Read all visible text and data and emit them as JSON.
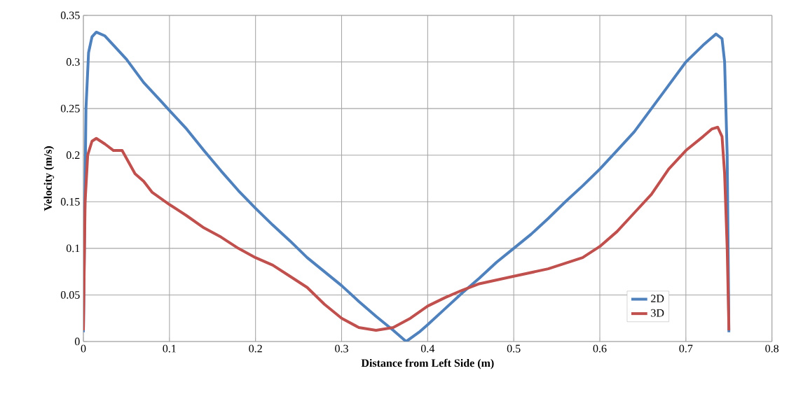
{
  "chart_data": {
    "type": "line",
    "xlabel": "Distance from Left Side (m)",
    "ylabel": "Velocity (m/s)",
    "xlim": [
      0,
      0.8
    ],
    "ylim": [
      0,
      0.35
    ],
    "xticks": [
      0,
      0.1,
      0.2,
      0.3,
      0.4,
      0.5,
      0.6,
      0.7,
      0.8
    ],
    "yticks": [
      0,
      0.05,
      0.1,
      0.15,
      0.2,
      0.25,
      0.3,
      0.35
    ],
    "grid": true,
    "legend": "bottom right",
    "marker": "none",
    "line_style": "solid",
    "series": [
      {
        "name": "2D",
        "color": "#4f81bd",
        "x": [
          0,
          0.003,
          0.006,
          0.01,
          0.015,
          0.025,
          0.035,
          0.05,
          0.07,
          0.09,
          0.1,
          0.12,
          0.14,
          0.16,
          0.18,
          0.2,
          0.22,
          0.24,
          0.26,
          0.28,
          0.3,
          0.32,
          0.34,
          0.36,
          0.375,
          0.39,
          0.4,
          0.42,
          0.44,
          0.46,
          0.48,
          0.5,
          0.52,
          0.54,
          0.56,
          0.58,
          0.6,
          0.62,
          0.64,
          0.66,
          0.68,
          0.7,
          0.72,
          0.735,
          0.742,
          0.745,
          0.748,
          0.75
        ],
        "values": [
          0.01,
          0.25,
          0.31,
          0.327,
          0.332,
          0.328,
          0.318,
          0.303,
          0.278,
          0.258,
          0.248,
          0.228,
          0.205,
          0.183,
          0.162,
          0.143,
          0.125,
          0.108,
          0.09,
          0.075,
          0.06,
          0.043,
          0.027,
          0.012,
          0.0,
          0.01,
          0.018,
          0.035,
          0.052,
          0.068,
          0.085,
          0.1,
          0.115,
          0.132,
          0.15,
          0.167,
          0.185,
          0.205,
          0.225,
          0.25,
          0.275,
          0.3,
          0.318,
          0.33,
          0.325,
          0.3,
          0.2,
          0.01
        ]
      },
      {
        "name": "3D",
        "color": "#c0504d",
        "x": [
          0,
          0.002,
          0.005,
          0.01,
          0.015,
          0.025,
          0.035,
          0.045,
          0.06,
          0.07,
          0.08,
          0.1,
          0.12,
          0.14,
          0.16,
          0.18,
          0.2,
          0.22,
          0.24,
          0.26,
          0.28,
          0.3,
          0.32,
          0.34,
          0.36,
          0.38,
          0.4,
          0.42,
          0.44,
          0.46,
          0.5,
          0.54,
          0.58,
          0.6,
          0.62,
          0.64,
          0.66,
          0.68,
          0.7,
          0.72,
          0.73,
          0.737,
          0.742,
          0.745,
          0.748,
          0.75
        ],
        "values": [
          0.012,
          0.15,
          0.2,
          0.215,
          0.218,
          0.212,
          0.205,
          0.205,
          0.18,
          0.172,
          0.16,
          0.147,
          0.135,
          0.122,
          0.112,
          0.1,
          0.09,
          0.082,
          0.07,
          0.058,
          0.04,
          0.025,
          0.015,
          0.012,
          0.015,
          0.025,
          0.038,
          0.047,
          0.055,
          0.062,
          0.07,
          0.078,
          0.09,
          0.102,
          0.118,
          0.138,
          0.158,
          0.185,
          0.205,
          0.22,
          0.228,
          0.23,
          0.22,
          0.18,
          0.1,
          0.012
        ]
      }
    ]
  }
}
